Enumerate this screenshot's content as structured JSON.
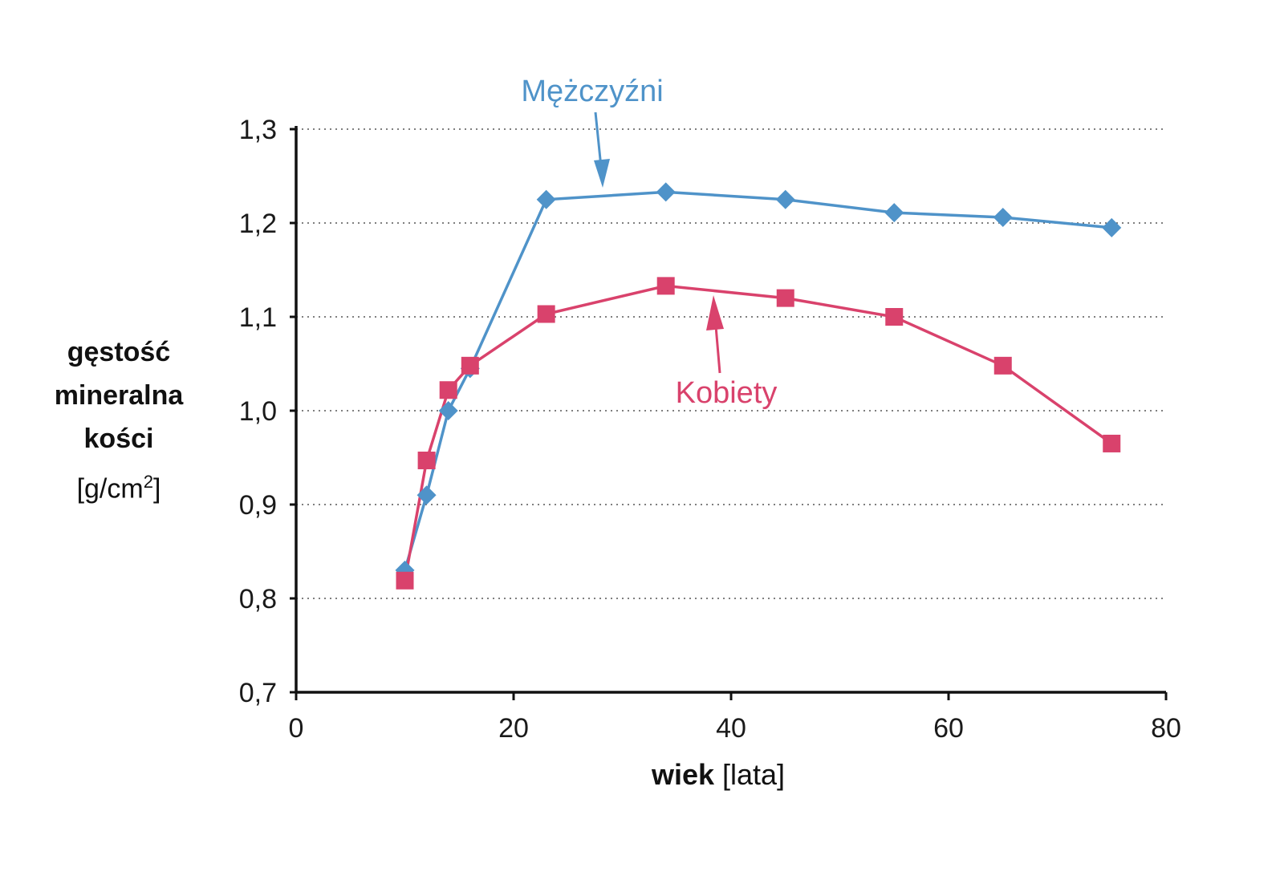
{
  "chart_data": {
    "type": "line",
    "xlabel_bold": "wiek",
    "xlabel_unit": "[lata]",
    "ylabel_lines": [
      "gęstość",
      "mineralna",
      "kości"
    ],
    "ylabel_unit_base": "[g/cm",
    "ylabel_unit_sup": "2",
    "ylabel_unit_end": "]",
    "xlim": [
      0,
      80
    ],
    "ylim": [
      0.7,
      1.3
    ],
    "xticks": [
      0,
      20,
      40,
      60,
      80
    ],
    "xtick_labels": [
      "0",
      "20",
      "40",
      "60",
      "80"
    ],
    "yticks": [
      0.7,
      0.8,
      0.9,
      1.0,
      1.1,
      1.2,
      1.3
    ],
    "ytick_labels": [
      "0,7",
      "0,8",
      "0,9",
      "1,0",
      "1,1",
      "1,2",
      "1,3"
    ],
    "grid": "horizontal dotted",
    "series": [
      {
        "name": "Mężczyźni",
        "color": "#4f93c9",
        "marker": "diamond",
        "x": [
          10,
          12,
          14,
          16,
          23,
          34,
          45,
          55,
          65,
          75
        ],
        "y": [
          0.83,
          0.91,
          1.0,
          1.045,
          1.225,
          1.233,
          1.225,
          1.211,
          1.206,
          1.195
        ]
      },
      {
        "name": "Kobiety",
        "color": "#d9426c",
        "marker": "square",
        "x": [
          10,
          12,
          14,
          16,
          23,
          34,
          45,
          55,
          65,
          75
        ],
        "y": [
          0.819,
          0.947,
          1.022,
          1.048,
          1.103,
          1.133,
          1.12,
          1.1,
          1.048,
          0.965
        ]
      }
    ]
  }
}
